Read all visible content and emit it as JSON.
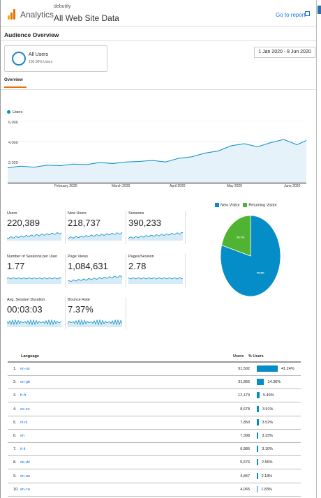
{
  "header": {
    "app_name": "Analytics",
    "property_name": "debutify",
    "view_name": "All Web Site Data",
    "goto_report": "Go to report",
    "logo_colors": [
      "#f9ab00",
      "#e37400",
      "#e37400"
    ]
  },
  "page": {
    "title": "Audience Overview",
    "segment": {
      "name": "All Users",
      "percent": "100.00% Users",
      "ring_color": "#1e88c7"
    },
    "date_range": "1 Jan 2020 - 8 Jun 2020",
    "tab": "Overview"
  },
  "chart_data": {
    "type": "line",
    "series": [
      {
        "name": "Users",
        "color": "#058dc7"
      }
    ],
    "y_ticks": [
      "6,000",
      "4,000",
      "2,000"
    ],
    "x_ticks": [
      "February 2020",
      "March 2020",
      "April 2020",
      "May 2020",
      "June 2020"
    ],
    "ylim": [
      0,
      6000
    ],
    "x_range": [
      "2020-01-01",
      "2020-06-08"
    ],
    "points": [
      [
        "2020-01-01",
        1500
      ],
      [
        "2020-01-08",
        1650
      ],
      [
        "2020-01-15",
        1550
      ],
      [
        "2020-01-22",
        1750
      ],
      [
        "2020-01-29",
        1700
      ],
      [
        "2020-02-05",
        1850
      ],
      [
        "2020-02-12",
        1800
      ],
      [
        "2020-02-19",
        2000
      ],
      [
        "2020-02-26",
        1900
      ],
      [
        "2020-03-04",
        2050
      ],
      [
        "2020-03-11",
        2100
      ],
      [
        "2020-03-18",
        2200
      ],
      [
        "2020-03-25",
        2050
      ],
      [
        "2020-04-01",
        2400
      ],
      [
        "2020-04-08",
        2550
      ],
      [
        "2020-04-15",
        2900
      ],
      [
        "2020-04-22",
        3100
      ],
      [
        "2020-04-29",
        3600
      ],
      [
        "2020-05-06",
        3800
      ],
      [
        "2020-05-13",
        3500
      ],
      [
        "2020-05-20",
        3900
      ],
      [
        "2020-05-27",
        4200
      ],
      [
        "2020-06-03",
        3700
      ],
      [
        "2020-06-08",
        4100
      ]
    ],
    "grid": true,
    "legend": "top-left"
  },
  "metrics": [
    {
      "label": "Users",
      "value": "220,389"
    },
    {
      "label": "New Users",
      "value": "218,737"
    },
    {
      "label": "Sessions",
      "value": "390,233"
    },
    {
      "label": "Number of Sessions per User",
      "value": "1.77"
    },
    {
      "label": "Page Views",
      "value": "1,084,631"
    },
    {
      "label": "Pages/Session",
      "value": "2.78"
    },
    {
      "label": "Avg. Session Duration",
      "value": "00:03:03"
    },
    {
      "label": "Bounce Rate",
      "value": "7.37%"
    }
  ],
  "pie": {
    "type": "pie",
    "legend": [
      "New Visitor",
      "Returning Visitor"
    ],
    "colors": [
      "#058dc7",
      "#50b432"
    ],
    "values": [
      79.3,
      20.7
    ],
    "labels": [
      "79.3%",
      "20.7%"
    ]
  },
  "table": {
    "headers": {
      "language": "Language",
      "users": "Users",
      "pct_users": "% Users"
    },
    "rows": [
      {
        "num": "1.",
        "lang": "en-us",
        "users": "91,502",
        "pct": "41.24%",
        "share": 41.24
      },
      {
        "num": "2.",
        "lang": "en-gb",
        "users": "31,866",
        "pct": "14.36%",
        "share": 14.36
      },
      {
        "num": "3.",
        "lang": "fr-fr",
        "users": "12,179",
        "pct": "5.49%",
        "share": 5.49
      },
      {
        "num": "4.",
        "lang": "es-es",
        "users": "8,678",
        "pct": "3.91%",
        "share": 3.91
      },
      {
        "num": "5.",
        "lang": "nl-nl",
        "users": "7,850",
        "pct": "3.52%",
        "share": 3.52
      },
      {
        "num": "6.",
        "lang": "en",
        "users": "7,398",
        "pct": "3.33%",
        "share": 3.33
      },
      {
        "num": "7.",
        "lang": "it-it",
        "users": "6,886",
        "pct": "3.10%",
        "share": 3.1
      },
      {
        "num": "8.",
        "lang": "de-de",
        "users": "5,676",
        "pct": "2.56%",
        "share": 2.56
      },
      {
        "num": "9.",
        "lang": "en-au",
        "users": "4,847",
        "pct": "2.18%",
        "share": 2.18
      },
      {
        "num": "10.",
        "lang": "en-ca",
        "users": "4,065",
        "pct": "1.83%",
        "share": 1.83
      }
    ]
  }
}
